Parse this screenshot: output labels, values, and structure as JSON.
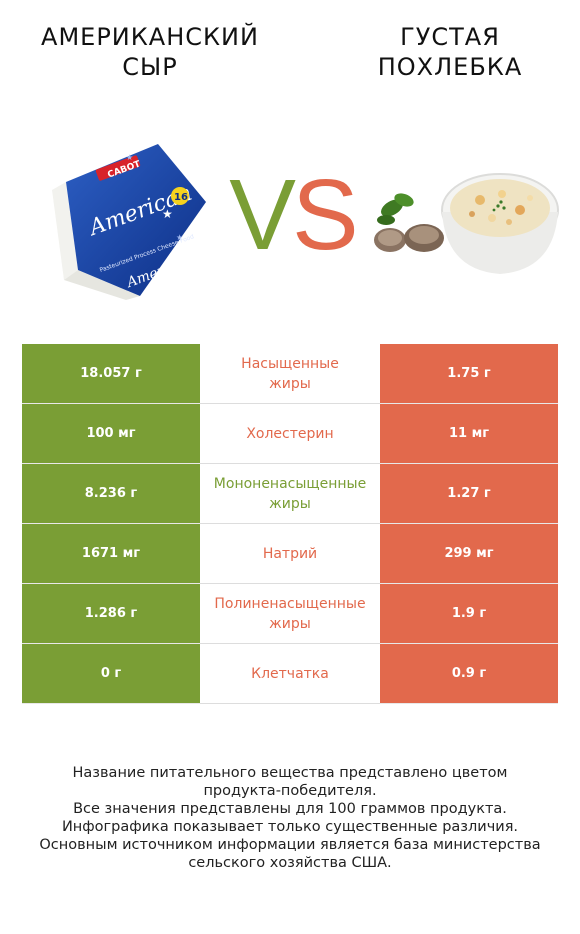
{
  "header": {
    "left_title_line1": "АМЕРИКАНСКИЙ",
    "left_title_line2": "СЫР",
    "right_title_line1": "ГУСТАЯ",
    "right_title_line2": "ПОХЛЕБКА",
    "vs_v": "V",
    "vs_s": "S"
  },
  "colors": {
    "left_accent": "#7a9e35",
    "right_accent": "#e2694c"
  },
  "cheese_image": {
    "brand": "CABOT",
    "product": "American",
    "count": "16",
    "subtitle": "Pasteurized Process Cheese Food"
  },
  "rows": [
    {
      "left": "18.057 г",
      "name": "Насыщенные\nжиры",
      "right": "1.75 г",
      "winner": "right"
    },
    {
      "left": "100 мг",
      "name": "Холестерин",
      "right": "11 мг",
      "winner": "right"
    },
    {
      "left": "8.236 г",
      "name": "Мононенасыщенные\nжиры",
      "right": "1.27 г",
      "winner": "left"
    },
    {
      "left": "1671 мг",
      "name": "Натрий",
      "right": "299 мг",
      "winner": "right"
    },
    {
      "left": "1.286 г",
      "name": "Полиненасыщенные\nжиры",
      "right": "1.9 г",
      "winner": "right"
    },
    {
      "left": "0 г",
      "name": "Клетчатка",
      "right": "0.9 г",
      "winner": "right"
    }
  ],
  "footer": {
    "line1": "Название питательного вещества представлено цветом",
    "line2": "продукта-победителя.",
    "line3": "Все значения представлены для 100 граммов продукта.",
    "line4": "Инфографика показывает только существенные различия.",
    "line5": "Основным источником информации является база министерства",
    "line6": "сельского хозяйства США."
  }
}
